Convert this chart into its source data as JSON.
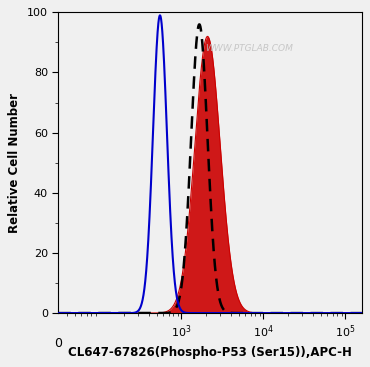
{
  "title": "",
  "xlabel": "CL647-67826(Phospho-P53 (Ser15)),APC-H",
  "ylabel": "Relative Cell Number",
  "watermark": "WWW.PTGLAB.COM",
  "ylim": [
    0,
    100
  ],
  "yticks": [
    0,
    20,
    40,
    60,
    80,
    100
  ],
  "background_color": "#f0f0f0",
  "plot_bg_color": "#f0f0f0",
  "blue_peak_log": 2.74,
  "blue_peak_height": 99,
  "blue_sigma_log": 0.085,
  "dashed_peak_log": 3.22,
  "dashed_peak_height": 96,
  "dashed_sigma_log": 0.1,
  "red_peak_log": 3.32,
  "red_peak_height": 92,
  "red_sigma_log": 0.155,
  "blue_color": "#0000cc",
  "dashed_color": "#000000",
  "red_color": "#cc0000",
  "red_fill_color": "#cc0000",
  "xtick_labels": [
    "0",
    "10^3",
    "10^4",
    "10^5"
  ],
  "xtick_positions_log": [
    0,
    3,
    4,
    5
  ]
}
